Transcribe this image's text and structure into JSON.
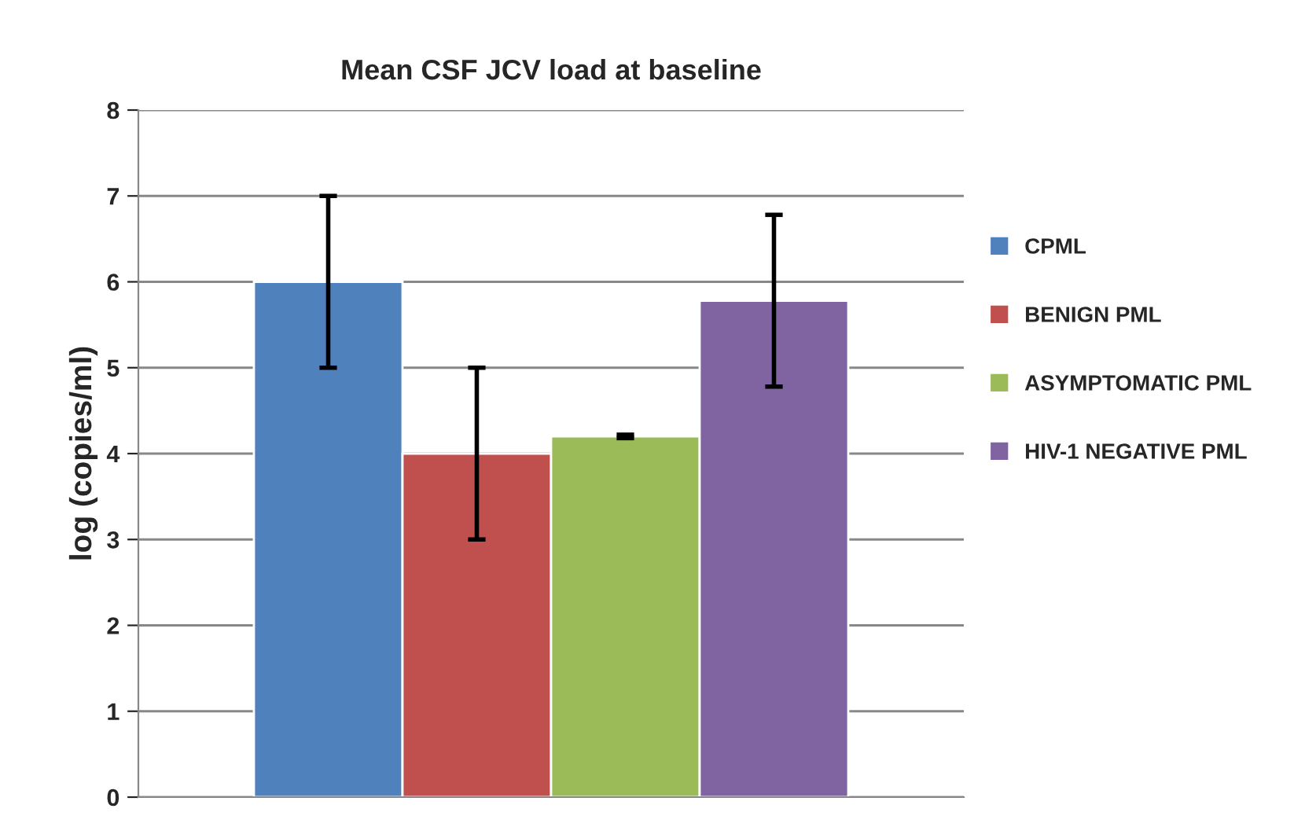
{
  "chart_data": {
    "type": "bar",
    "title": "Mean CSF JCV load at baseline",
    "ylabel": "log (copies/ml)",
    "categories": [
      null
    ],
    "series": [
      {
        "name": "CPML",
        "color": "#4f81bd",
        "values": [
          6.0
        ],
        "errors": [
          1.0
        ]
      },
      {
        "name": "BENIGN PML",
        "color": "#c0504d",
        "values": [
          4.0
        ],
        "errors": [
          1.0
        ]
      },
      {
        "name": "ASYMPTOMATIC PML",
        "color": "#9bbb59",
        "values": [
          4.2
        ],
        "errors": [
          0.02
        ]
      },
      {
        "name": "HIV-1 NEGATIVE PML",
        "color": "#8064a2",
        "values": [
          5.78
        ],
        "errors": [
          1.0
        ]
      }
    ],
    "ylim": [
      0,
      8
    ],
    "yticks": [
      0,
      1,
      2,
      3,
      4,
      5,
      6,
      7,
      8
    ],
    "grid": "y",
    "legend": "right"
  }
}
